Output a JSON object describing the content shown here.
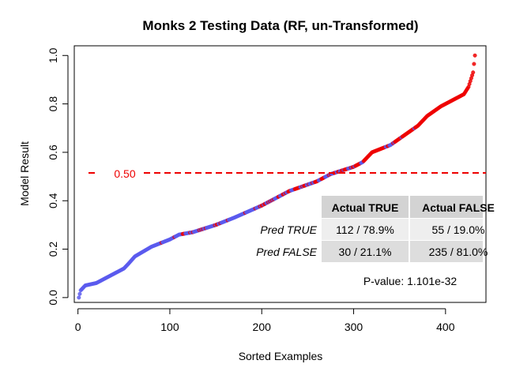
{
  "chart_data": {
    "type": "scatter",
    "title": "Monks 2 Testing Data (RF, un-Transformed)",
    "xlabel": "Sorted Examples",
    "ylabel": "Model Result",
    "xlim": [
      -4,
      444
    ],
    "ylim": [
      -0.02,
      1.04
    ],
    "xticks": [
      0,
      100,
      200,
      300,
      400
    ],
    "yticks": [
      0.0,
      0.2,
      0.4,
      0.6,
      0.8,
      1.0
    ],
    "ytick_labels": [
      "0.0",
      "0.2",
      "0.4",
      "0.6",
      "0.8",
      "1.0"
    ],
    "n_examples": 432,
    "series": [
      {
        "name": "Actual TRUE",
        "color": "#ee0000"
      },
      {
        "name": "Actual FALSE",
        "color": "#5a5aee"
      }
    ],
    "sorted_curve": {
      "x": [
        1,
        3,
        8,
        20,
        35,
        50,
        55,
        62,
        80,
        100,
        110,
        125,
        150,
        170,
        200,
        230,
        260,
        275,
        300,
        310,
        320,
        340,
        355,
        370,
        380,
        395,
        410,
        420,
        425,
        430,
        432
      ],
      "y": [
        0.0,
        0.03,
        0.05,
        0.06,
        0.09,
        0.12,
        0.14,
        0.17,
        0.21,
        0.24,
        0.26,
        0.27,
        0.3,
        0.33,
        0.38,
        0.44,
        0.48,
        0.51,
        0.54,
        0.56,
        0.6,
        0.63,
        0.67,
        0.71,
        0.75,
        0.79,
        0.82,
        0.84,
        0.87,
        0.93,
        1.0
      ]
    },
    "threshold": {
      "value": 0.5,
      "label": "0.50",
      "color": "#ee0000"
    },
    "confusion_table": {
      "col_headers": [
        "Actual TRUE",
        "Actual FALSE"
      ],
      "rows": [
        {
          "label": "Pred TRUE",
          "cells": [
            "112 / 78.9%",
            "55 / 19.0%"
          ]
        },
        {
          "label": "Pred FALSE",
          "cells": [
            "30 / 21.1%",
            "235 / 81.0%"
          ]
        }
      ]
    },
    "pvalue_text": "P-value: 1.101e-32"
  }
}
